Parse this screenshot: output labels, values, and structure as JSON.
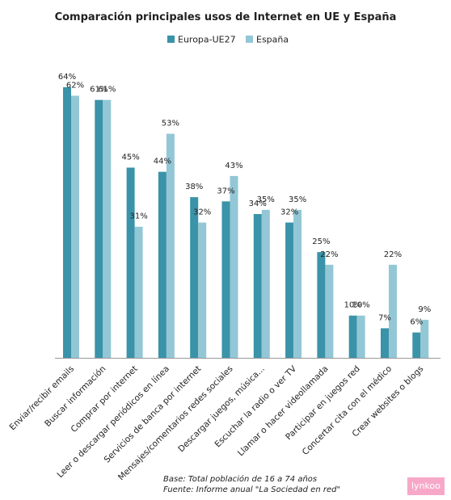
{
  "chart_data": {
    "type": "bar",
    "title": "Comparación principales usos de Internet en UE y España",
    "categories": [
      "Enviar/recibir emails",
      "Buscar información",
      "Comprar por internet",
      "Leer o descargar periódicos en línea",
      "Servicios de banca por internet",
      "Mensajes/comentarios redes sociales",
      "Descargar juegos, música...",
      "Escuchar la radio o ver TV",
      "Llamar o hacer videollamada",
      "Participar en juegos red",
      "Concertar cita con el médico",
      "Crear websites o blogs"
    ],
    "series": [
      {
        "name": "Europa-UE27",
        "color": "#3a93a8",
        "values": [
          64,
          61,
          45,
          44,
          38,
          37,
          34,
          32,
          25,
          10,
          7,
          6
        ]
      },
      {
        "name": "España",
        "color": "#93c7d6",
        "values": [
          62,
          61,
          31,
          53,
          32,
          43,
          35,
          35,
          22,
          10,
          22,
          9
        ]
      }
    ],
    "value_suffix": "%",
    "ylim": [
      0,
      68
    ],
    "legend_position": "top-center",
    "grid": false,
    "xlabel": "",
    "ylabel": ""
  },
  "footnote": {
    "base": "Base: Total población de 16 a 74 años",
    "source": "Fuente: Informe anual \"La Sociedad en red\""
  },
  "brand": {
    "name": "lynkoo",
    "color": "#f7a8c8"
  }
}
